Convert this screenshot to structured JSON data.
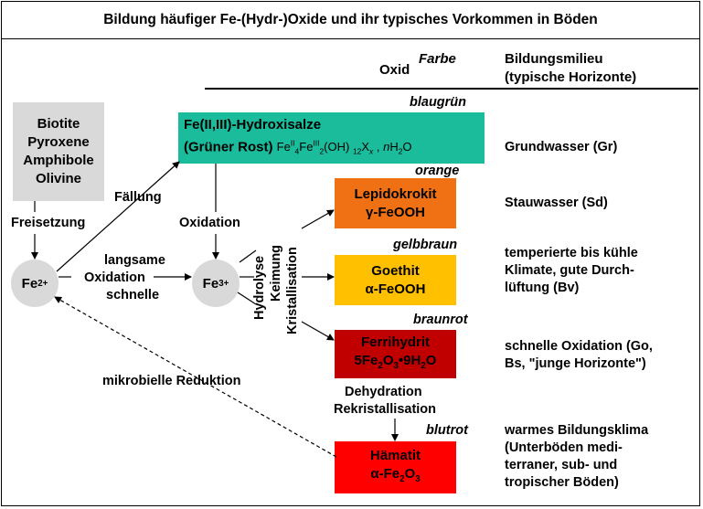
{
  "title": "Bildung häufiger Fe-(Hydr-)Oxide und ihr typisches Vorkommen in Böden",
  "header": {
    "oxid": "Oxid",
    "farbe": "Farbe",
    "milieu_line1": "Bildungsmilieu",
    "milieu_line2": "(typische Horizonte)"
  },
  "source_minerals": [
    "Biotite",
    "Pyroxene",
    "Amphibole",
    "Olivine"
  ],
  "nodes": {
    "fe2": "Fe2+",
    "fe3": "Fe3+"
  },
  "process_labels": {
    "freisetzung": "Freisetzung",
    "faellung": "Fällung",
    "oxidation": "Oxidation",
    "langsame": "langsame",
    "oxidation_mid": "Oxidation",
    "schnelle": "schnelle",
    "hydrolyse": "Hydrolyse",
    "keimung": "Keimung",
    "kristallisation": "Kristallisation",
    "dehydration": "Dehydration",
    "rekristallisation": "Rekristallisation",
    "reduktion": "mikrobielle Reduktion"
  },
  "oxides": [
    {
      "color_name": "blaugrün",
      "name_line1": "Fe(II,III)-Hydroxisalze",
      "name_line2": "(Grüner Rost)",
      "formula": "FeII4FeIII2(OH)12Xx, nH2O",
      "fill": "#1abc9c",
      "milieu": [
        "Grundwasser (Gr)"
      ]
    },
    {
      "color_name": "orange",
      "name_line1": "Lepidokrokit",
      "name_line2": "γ-FeOOH",
      "fill": "#f07014",
      "milieu": [
        "Stauwasser (Sd)"
      ]
    },
    {
      "color_name": "gelbbraun",
      "name_line1": "Goethit",
      "name_line2": "α-FeOOH",
      "fill": "#ffc000",
      "milieu": [
        "temperierte bis kühle",
        "Klimate, gute Durch-",
        "lüftung (Bv)"
      ]
    },
    {
      "color_name": "braunrot",
      "name_line1": "Ferrihydrit",
      "name_line2": "5Fe2O3•9H2O",
      "fill": "#c00000",
      "milieu": [
        "schnelle Oxidation (Go,",
        "Bs, \"junge Horizonte\")"
      ]
    },
    {
      "color_name": "blutrot",
      "name_line1": "Hämatit",
      "name_line2": "α-Fe2O3",
      "fill": "#ff0000",
      "milieu": [
        "warmes Bildungsklima",
        "(Unterböden medi-",
        "terraner, sub- und",
        "tropischer Böden)"
      ]
    }
  ]
}
